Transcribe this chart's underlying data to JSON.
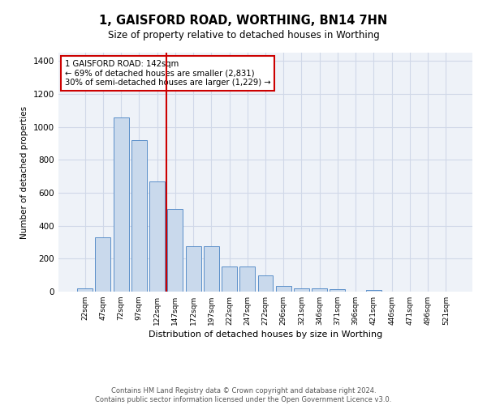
{
  "title": "1, GAISFORD ROAD, WORTHING, BN14 7HN",
  "subtitle": "Size of property relative to detached houses in Worthing",
  "xlabel": "Distribution of detached houses by size in Worthing",
  "ylabel": "Number of detached properties",
  "footnote": "Contains HM Land Registry data © Crown copyright and database right 2024.\nContains public sector information licensed under the Open Government Licence v3.0.",
  "bar_color": "#c9d9ec",
  "bar_edge_color": "#5b8fc9",
  "categories": [
    "22sqm",
    "47sqm",
    "72sqm",
    "97sqm",
    "122sqm",
    "147sqm",
    "172sqm",
    "197sqm",
    "222sqm",
    "247sqm",
    "272sqm",
    "296sqm",
    "321sqm",
    "346sqm",
    "371sqm",
    "396sqm",
    "421sqm",
    "446sqm",
    "471sqm",
    "496sqm",
    "521sqm"
  ],
  "values": [
    20,
    330,
    1055,
    920,
    670,
    500,
    275,
    275,
    150,
    150,
    100,
    35,
    22,
    22,
    15,
    0,
    12,
    0,
    0,
    0,
    0
  ],
  "vline_color": "#cc0000",
  "vline_x": 4.5,
  "annotation_text": "1 GAISFORD ROAD: 142sqm\n← 69% of detached houses are smaller (2,831)\n30% of semi-detached houses are larger (1,229) →",
  "annotation_box_color": "#cc0000",
  "ylim": [
    0,
    1450
  ],
  "yticks": [
    0,
    200,
    400,
    600,
    800,
    1000,
    1200,
    1400
  ],
  "grid_color": "#d0d8e8",
  "background_color": "#eef2f8"
}
